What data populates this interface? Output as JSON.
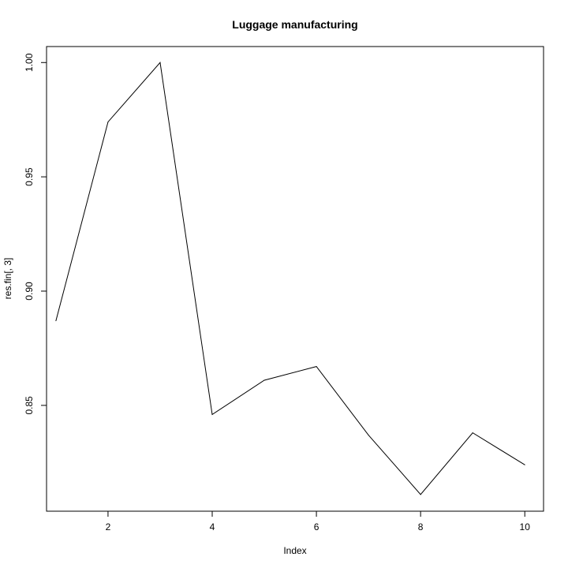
{
  "chart_data": {
    "type": "line",
    "title": "Luggage manufacturing",
    "xlabel": "Index",
    "ylabel": "res.fin[, 3]",
    "x": [
      1,
      2,
      3,
      4,
      5,
      6,
      7,
      8,
      9,
      10
    ],
    "series": [
      {
        "values": [
          0.887,
          0.974,
          1.0,
          0.846,
          0.861,
          0.867,
          0.837,
          0.811,
          0.838,
          0.824
        ]
      }
    ],
    "xlim": [
      0.82,
      10.36
    ],
    "ylim": [
      0.8037,
      1.007
    ],
    "x_ticks": [
      2,
      4,
      6,
      8,
      10
    ],
    "x_tick_labels": [
      "2",
      "4",
      "6",
      "8",
      "10"
    ],
    "y_ticks": [
      0.85,
      0.9,
      0.95,
      1.0
    ],
    "y_tick_labels": [
      "0.85",
      "0.90",
      "0.95",
      "1.00"
    ],
    "grid": false,
    "legend": "none",
    "line_color": "#000000"
  }
}
